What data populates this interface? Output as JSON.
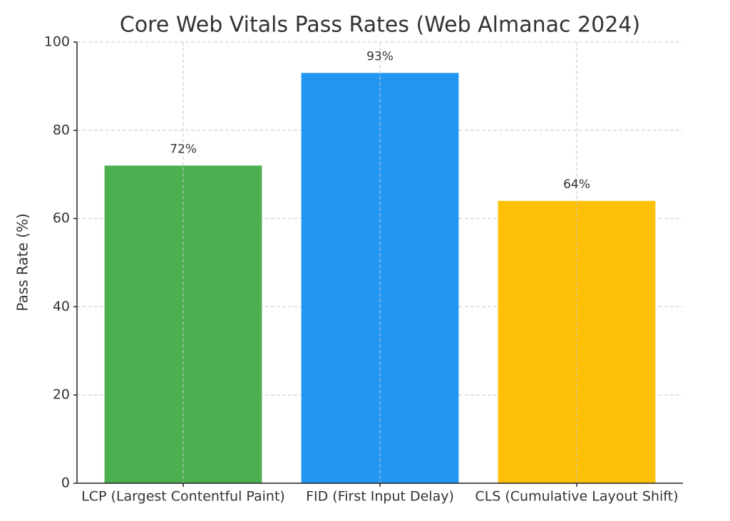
{
  "chart_data": {
    "type": "bar",
    "title": "Core Web Vitals Pass Rates (Web Almanac 2024)",
    "ylabel": "Pass Rate (%)",
    "categories": [
      "LCP (Largest Contentful Paint)",
      "FID (First Input Delay)",
      "CLS (Cumulative Layout Shift)"
    ],
    "values": [
      72,
      93,
      64
    ],
    "value_labels": [
      "72%",
      "93%",
      "64%"
    ],
    "colors": [
      "#4caf50",
      "#2196f3",
      "#ffc107"
    ],
    "ylim": [
      0,
      100
    ],
    "yticks": [
      0,
      20,
      40,
      60,
      80,
      100
    ],
    "grid": true
  }
}
